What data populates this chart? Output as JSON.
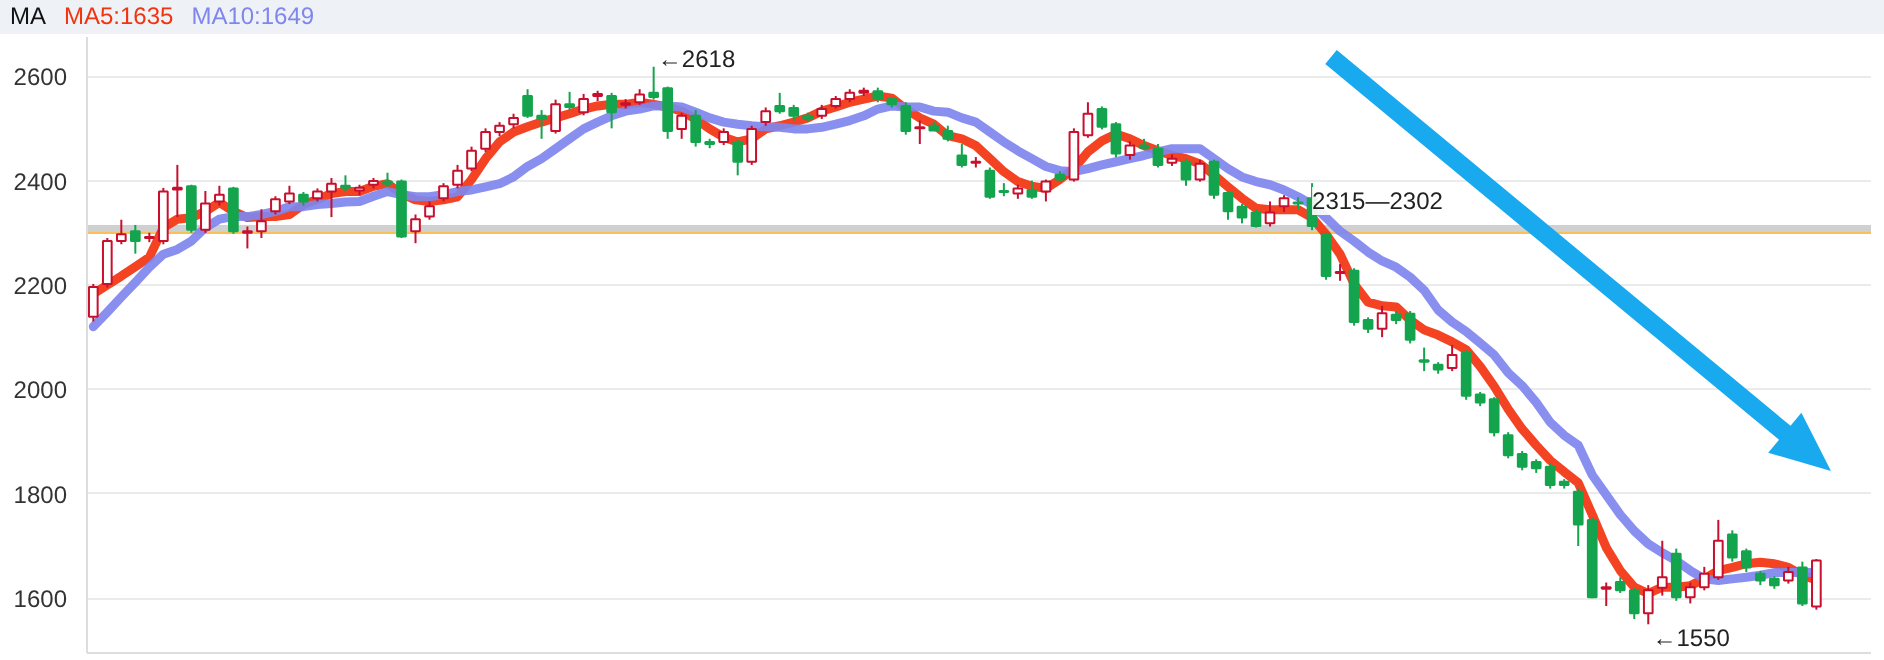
{
  "chart_data": {
    "type": "candlestick",
    "legend_title": "MA",
    "legend": "top left",
    "grid": "y",
    "tick_labels": "y",
    "categories": [
      null,
      null,
      null,
      null,
      null,
      null,
      null,
      null,
      null,
      null,
      null,
      null,
      null,
      null,
      null,
      null,
      null,
      null,
      null,
      null,
      null,
      null,
      null,
      null,
      null,
      null,
      null,
      null,
      null,
      null,
      null,
      null,
      null,
      null,
      null,
      null,
      null,
      null,
      null,
      null,
      null,
      null,
      null,
      null,
      null,
      null,
      null,
      null,
      null,
      null,
      null,
      null,
      null,
      null,
      null,
      null,
      null,
      null,
      null,
      null,
      null,
      null,
      null,
      null,
      null,
      null,
      null,
      null,
      null,
      null,
      null,
      null,
      null,
      null,
      null,
      null,
      null,
      null,
      null,
      null,
      null,
      null,
      null,
      null,
      null,
      null,
      null,
      null,
      null,
      null,
      null,
      null,
      null,
      null,
      null,
      null,
      null,
      null,
      null,
      null,
      null,
      null,
      null,
      null,
      null,
      null,
      null,
      null,
      null,
      null,
      null,
      null,
      null,
      null,
      null,
      null,
      null,
      null,
      null,
      null,
      null,
      null,
      null,
      null
    ],
    "ylim": [
      1495,
      2675
    ],
    "yticks": [
      1600,
      1800,
      2000,
      2200,
      2400,
      2600
    ],
    "ohlc": [
      [
        2139,
        2202,
        2130,
        2196
      ],
      [
        2202,
        2290,
        2195,
        2284
      ],
      [
        2284,
        2325,
        2278,
        2297
      ],
      [
        2303,
        2315,
        2260,
        2284
      ],
      [
        2290,
        2300,
        2282,
        2292
      ],
      [
        2284,
        2386,
        2278,
        2379
      ],
      [
        2383,
        2430,
        2330,
        2386
      ],
      [
        2389,
        2392,
        2300,
        2306
      ],
      [
        2306,
        2380,
        2300,
        2356
      ],
      [
        2360,
        2390,
        2352,
        2373
      ],
      [
        2385,
        2388,
        2298,
        2303
      ],
      [
        2300,
        2312,
        2270,
        2303
      ],
      [
        2303,
        2345,
        2290,
        2322
      ],
      [
        2341,
        2370,
        2335,
        2364
      ],
      [
        2360,
        2390,
        2355,
        2375
      ],
      [
        2373,
        2378,
        2352,
        2360
      ],
      [
        2366,
        2385,
        2360,
        2379
      ],
      [
        2379,
        2405,
        2330,
        2394
      ],
      [
        2390,
        2410,
        2380,
        2386
      ],
      [
        2381,
        2392,
        2372,
        2386
      ],
      [
        2392,
        2405,
        2385,
        2399
      ],
      [
        2398,
        2415,
        2388,
        2394
      ],
      [
        2398,
        2402,
        2290,
        2293
      ],
      [
        2303,
        2335,
        2280,
        2326
      ],
      [
        2331,
        2360,
        2325,
        2351
      ],
      [
        2366,
        2395,
        2360,
        2389
      ],
      [
        2392,
        2430,
        2385,
        2419
      ],
      [
        2423,
        2465,
        2418,
        2457
      ],
      [
        2461,
        2500,
        2455,
        2493
      ],
      [
        2493,
        2512,
        2485,
        2505
      ],
      [
        2508,
        2528,
        2500,
        2520
      ],
      [
        2562,
        2575,
        2520,
        2524
      ],
      [
        2524,
        2535,
        2480,
        2518
      ],
      [
        2495,
        2555,
        2490,
        2546
      ],
      [
        2546,
        2570,
        2535,
        2541
      ],
      [
        2531,
        2566,
        2525,
        2556
      ],
      [
        2562,
        2572,
        2552,
        2566
      ],
      [
        2562,
        2568,
        2500,
        2531
      ],
      [
        2545,
        2556,
        2538,
        2548
      ],
      [
        2550,
        2575,
        2545,
        2565
      ],
      [
        2568,
        2618,
        2555,
        2560
      ],
      [
        2577,
        2580,
        2480,
        2495
      ],
      [
        2499,
        2530,
        2480,
        2524
      ],
      [
        2524,
        2535,
        2465,
        2474
      ],
      [
        2474,
        2480,
        2462,
        2470
      ],
      [
        2474,
        2500,
        2468,
        2493
      ],
      [
        2474,
        2478,
        2410,
        2436
      ],
      [
        2436,
        2505,
        2430,
        2499
      ],
      [
        2512,
        2540,
        2505,
        2533
      ],
      [
        2543,
        2568,
        2528,
        2533
      ],
      [
        2539,
        2545,
        2515,
        2524
      ],
      [
        2524,
        2530,
        2512,
        2518
      ],
      [
        2524,
        2545,
        2518,
        2537
      ],
      [
        2543,
        2562,
        2538,
        2556
      ],
      [
        2556,
        2575,
        2550,
        2568
      ],
      [
        2568,
        2578,
        2562,
        2572
      ],
      [
        2571,
        2578,
        2550,
        2556
      ],
      [
        2556,
        2560,
        2540,
        2546
      ],
      [
        2543,
        2550,
        2488,
        2495
      ],
      [
        2500,
        2515,
        2470,
        2502
      ],
      [
        2505,
        2512,
        2495,
        2496
      ],
      [
        2495,
        2505,
        2475,
        2480
      ],
      [
        2448,
        2470,
        2425,
        2430
      ],
      [
        2434,
        2445,
        2425,
        2436
      ],
      [
        2419,
        2425,
        2365,
        2369
      ],
      [
        2380,
        2395,
        2370,
        2378
      ],
      [
        2375,
        2392,
        2365,
        2385
      ],
      [
        2382,
        2400,
        2365,
        2369
      ],
      [
        2379,
        2402,
        2360,
        2398
      ],
      [
        2411,
        2418,
        2398,
        2402
      ],
      [
        2402,
        2500,
        2398,
        2493
      ],
      [
        2487,
        2550,
        2482,
        2528
      ],
      [
        2537,
        2542,
        2498,
        2503
      ],
      [
        2508,
        2512,
        2445,
        2452
      ],
      [
        2449,
        2475,
        2440,
        2467
      ],
      [
        2467,
        2480,
        2458,
        2463
      ],
      [
        2461,
        2470,
        2425,
        2430
      ],
      [
        2434,
        2450,
        2428,
        2442
      ],
      [
        2436,
        2442,
        2390,
        2402
      ],
      [
        2402,
        2440,
        2398,
        2432
      ],
      [
        2436,
        2440,
        2365,
        2373
      ],
      [
        2376,
        2380,
        2325,
        2341
      ],
      [
        2350,
        2355,
        2318,
        2329
      ],
      [
        2339,
        2345,
        2310,
        2313
      ],
      [
        2318,
        2360,
        2312,
        2339
      ],
      [
        2351,
        2372,
        2340,
        2366
      ],
      [
        2358,
        2368,
        2345,
        2356
      ],
      [
        2366,
        2395,
        2305,
        2313
      ],
      [
        2297,
        2300,
        2210,
        2217
      ],
      [
        2223,
        2240,
        2208,
        2225
      ],
      [
        2227,
        2232,
        2122,
        2129
      ],
      [
        2133,
        2138,
        2108,
        2116
      ],
      [
        2116,
        2160,
        2100,
        2146
      ],
      [
        2143,
        2150,
        2125,
        2133
      ],
      [
        2145,
        2150,
        2088,
        2095
      ],
      [
        2056,
        2080,
        2035,
        2053
      ],
      [
        2047,
        2052,
        2030,
        2038
      ],
      [
        2041,
        2085,
        2035,
        2066
      ],
      [
        2070,
        2075,
        1980,
        1988
      ],
      [
        1990,
        1995,
        1968,
        1975
      ],
      [
        1981,
        1985,
        1910,
        1918
      ],
      [
        1912,
        1918,
        1868,
        1874
      ],
      [
        1876,
        1882,
        1845,
        1852
      ],
      [
        1861,
        1866,
        1840,
        1849
      ],
      [
        1852,
        1858,
        1810,
        1817
      ],
      [
        1823,
        1828,
        1810,
        1817
      ],
      [
        1804,
        1810,
        1700,
        1741
      ],
      [
        1750,
        1755,
        1600,
        1602
      ],
      [
        1618,
        1630,
        1585,
        1621
      ],
      [
        1631,
        1640,
        1610,
        1615
      ],
      [
        1615,
        1620,
        1560,
        1571
      ],
      [
        1571,
        1625,
        1550,
        1615
      ],
      [
        1620,
        1710,
        1605,
        1640
      ],
      [
        1685,
        1695,
        1595,
        1602
      ],
      [
        1602,
        1630,
        1590,
        1621
      ],
      [
        1621,
        1660,
        1615,
        1647
      ],
      [
        1640,
        1750,
        1635,
        1710
      ],
      [
        1722,
        1730,
        1670,
        1678
      ],
      [
        1690,
        1695,
        1650,
        1659
      ],
      [
        1647,
        1652,
        1625,
        1634
      ],
      [
        1637,
        1642,
        1618,
        1625
      ],
      [
        1634,
        1660,
        1628,
        1650
      ],
      [
        1659,
        1670,
        1585,
        1590
      ],
      [
        1584,
        1675,
        1578,
        1672
      ]
    ],
    "series": [
      {
        "name": "MA5:1635",
        "type": "line",
        "color": "#f2330f",
        "values": [
          2183,
          2200,
          2217,
          2235,
          2253,
          2310,
          2326,
          2329,
          2341,
          2358,
          2341,
          2329,
          2331,
          2331,
          2335,
          2354,
          2364,
          2375,
          2379,
          2379,
          2389,
          2394,
          2375,
          2363,
          2360,
          2363,
          2369,
          2402,
          2442,
          2474,
          2493,
          2503,
          2512,
          2520,
          2528,
          2537,
          2543,
          2546,
          2546,
          2550,
          2546,
          2541,
          2533,
          2518,
          2499,
          2483,
          2474,
          2480,
          2499,
          2505,
          2512,
          2520,
          2533,
          2541,
          2550,
          2556,
          2562,
          2558,
          2537,
          2520,
          2508,
          2486,
          2480,
          2467,
          2442,
          2417,
          2398,
          2389,
          2385,
          2402,
          2423,
          2455,
          2476,
          2489,
          2480,
          2467,
          2457,
          2448,
          2442,
          2432,
          2411,
          2388,
          2366,
          2347,
          2344,
          2344,
          2344,
          2329,
          2297,
          2259,
          2202,
          2167,
          2160,
          2158,
          2133,
          2114,
          2104,
          2091,
          2076,
          2044,
          2006,
          1962,
          1924,
          1893,
          1864,
          1842,
          1821,
          1760,
          1697,
          1653,
          1621,
          1609,
          1621,
          1621,
          1624,
          1637,
          1653,
          1659,
          1666,
          1669,
          1666,
          1659,
          1644,
          1635
        ]
      },
      {
        "name": "MA10:1649",
        "type": "line",
        "color": "#7f86ee",
        "values": [
          2120,
          2148,
          2177,
          2205,
          2234,
          2259,
          2268,
          2284,
          2310,
          2326,
          2331,
          2331,
          2335,
          2341,
          2350,
          2350,
          2354,
          2356,
          2359,
          2360,
          2370,
          2379,
          2373,
          2369,
          2369,
          2373,
          2379,
          2382,
          2388,
          2394,
          2407,
          2427,
          2442,
          2461,
          2480,
          2499,
          2512,
          2524,
          2533,
          2537,
          2543,
          2543,
          2541,
          2531,
          2520,
          2512,
          2508,
          2505,
          2503,
          2502,
          2499,
          2499,
          2502,
          2508,
          2515,
          2524,
          2537,
          2543,
          2541,
          2541,
          2533,
          2531,
          2520,
          2512,
          2493,
          2474,
          2457,
          2442,
          2427,
          2419,
          2417,
          2423,
          2430,
          2436,
          2442,
          2448,
          2455,
          2461,
          2461,
          2461,
          2442,
          2423,
          2407,
          2398,
          2392,
          2382,
          2369,
          2354,
          2329,
          2303,
          2284,
          2263,
          2246,
          2234,
          2215,
          2190,
          2152,
          2129,
          2111,
          2089,
          2066,
          2032,
          2007,
          1975,
          1937,
          1912,
          1893,
          1836,
          1798,
          1760,
          1729,
          1704,
          1687,
          1672,
          1653,
          1637,
          1634,
          1637,
          1640,
          1644,
          1649,
          1649,
          1649,
          1649
        ]
      }
    ],
    "ref_lines": [
      {
        "axis": "y",
        "value": 2300,
        "color": "#f8c057"
      }
    ],
    "bands": [
      {
        "axis": "y",
        "from": 2302,
        "to": 2315,
        "label": "2315—2302",
        "color": "#c4c4c4"
      }
    ],
    "annotations": [
      "←2618",
      "←1550"
    ]
  }
}
